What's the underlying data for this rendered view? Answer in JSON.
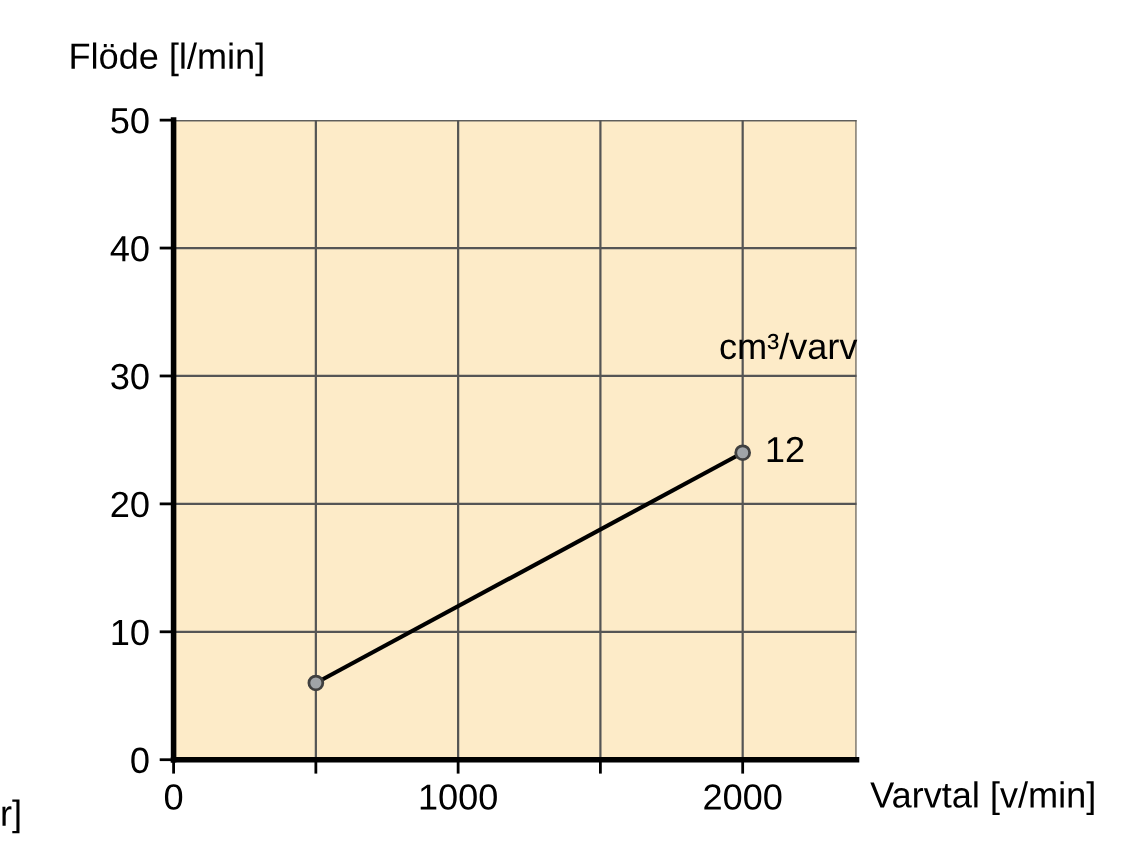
{
  "chart_data": {
    "type": "line",
    "xlabel": "Varvtal [v/min]",
    "ylabel": "Flöde [l/min]",
    "x": [
      500,
      2000
    ],
    "series": [
      {
        "color": "#000000",
        "values": [
          6,
          24
        ]
      }
    ],
    "marker": "circle",
    "xlim": [
      0,
      2400
    ],
    "ylim": [
      0,
      50
    ],
    "xticks": [
      0,
      {
        "value": 500,
        "label": null
      },
      1000,
      {
        "value": 1500,
        "label": null
      },
      2000
    ],
    "yticks": [
      0,
      10,
      20,
      30,
      40,
      50
    ],
    "grid": true,
    "annotations": [
      "cm³/varv",
      {
        "text": "12",
        "x": 2000,
        "y": 24
      },
      "r]"
    ]
  }
}
